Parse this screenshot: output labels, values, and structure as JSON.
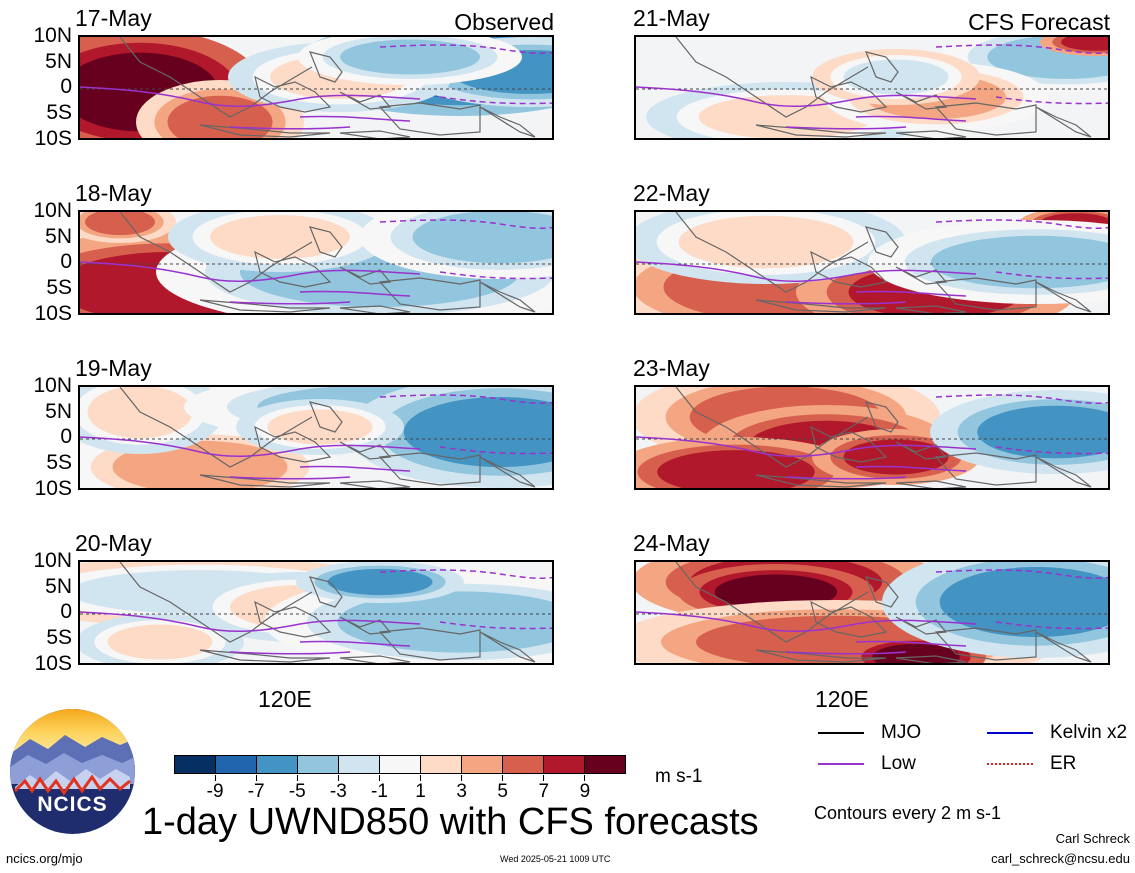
{
  "panels": {
    "left": [
      {
        "date": "17-May",
        "header": "Observed"
      },
      {
        "date": "18-May"
      },
      {
        "date": "19-May"
      },
      {
        "date": "20-May"
      }
    ],
    "right": [
      {
        "date": "21-May",
        "header": "CFS Forecast"
      },
      {
        "date": "22-May"
      },
      {
        "date": "23-May"
      },
      {
        "date": "24-May"
      }
    ]
  },
  "lat_ticks": [
    "10N",
    "5N",
    "0",
    "5S",
    "10S"
  ],
  "lon_tick": "120E",
  "colorbar": {
    "labels": [
      "-9",
      "-7",
      "-5",
      "-3",
      "-1",
      "1",
      "3",
      "5",
      "7",
      "9"
    ],
    "colors": [
      "#053061",
      "#2166ac",
      "#4393c3",
      "#92c5de",
      "#d1e5f0",
      "#f7f7f7",
      "#fddbc7",
      "#f4a582",
      "#d6604d",
      "#b2182b",
      "#67001f"
    ],
    "units": "m s-1"
  },
  "title": "1-day UWND850 with CFS forecasts",
  "legend": {
    "items": [
      {
        "label": "MJO",
        "color": "#000000",
        "style": "solid"
      },
      {
        "label": "Kelvin x2",
        "color": "#0000cc",
        "style": "solid"
      },
      {
        "label": "Low",
        "color": "#9a32cd",
        "style": "solid"
      },
      {
        "label": "ER",
        "color": "#dd2222",
        "style": "dotted"
      }
    ],
    "note": "Contours every 2 m s-1"
  },
  "footer": {
    "url": "ncics.org/mjo",
    "timestamp": "Wed 2025-05-21 1009 UTC",
    "author": "Carl Schreck",
    "email": "carl_schreck@ncsu.edu"
  },
  "logo": {
    "text": "NCICS"
  }
}
